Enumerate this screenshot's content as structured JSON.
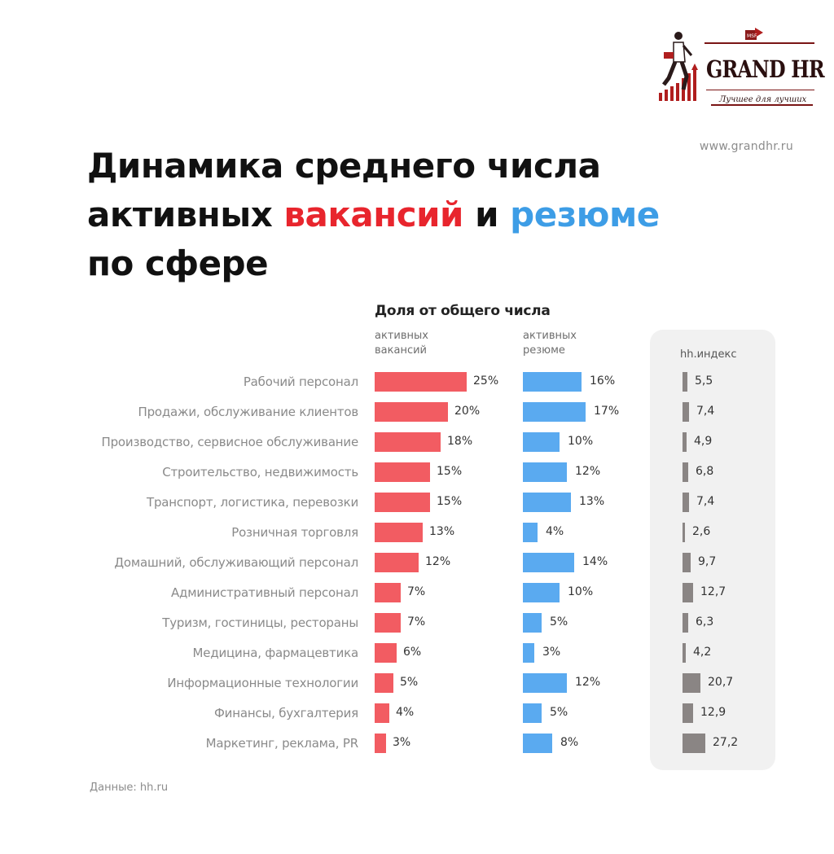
{
  "logo": {
    "brand": "GRAND HR",
    "tagline": "Лучшее для лучших",
    "stamp": "MSF"
  },
  "site": "www.grandhr.ru",
  "title": {
    "part1": "Динамика среднего числа активных ",
    "vacancies_word": "вакансий",
    "and_word": " и ",
    "resumes_word": "резюме",
    "part2": " по сфере"
  },
  "colors": {
    "vacancies": "#f25c62",
    "resumes": "#5aaaf0",
    "hh_index": "#8a8584",
    "title_red": "#e8252d",
    "title_blue": "#3d9de6"
  },
  "chart_data": {
    "type": "bar",
    "title": "Доля от общего числа",
    "columns": {
      "vacancies": "активных вакансий",
      "resumes": "активных резюме",
      "hh_index": "hh.индекс"
    },
    "categories": [
      "Рабочий персонал",
      "Продажи, обслуживание клиентов",
      "Производство, сервисное обслуживание",
      "Строительство, недвижимость",
      "Транспорт, логистика, перевозки",
      "Розничная торговля",
      "Домашний, обслуживающий персонал",
      "Административный персонал",
      "Туризм, гостиницы, рестораны",
      "Медицина, фармацевтика",
      "Информационные технологии",
      "Финансы, бухгалтерия",
      "Маркетинг, реклама, PR"
    ],
    "series": [
      {
        "name": "активных вакансий",
        "values": [
          25,
          20,
          18,
          15,
          15,
          13,
          12,
          7,
          7,
          6,
          5,
          4,
          3
        ],
        "unit": "%"
      },
      {
        "name": "активных резюме",
        "values": [
          16,
          17,
          10,
          12,
          13,
          4,
          14,
          10,
          5,
          3,
          12,
          5,
          8
        ],
        "unit": "%"
      },
      {
        "name": "hh.индекс",
        "values": [
          "5,5",
          "7,4",
          "4,9",
          "6,8",
          "7,4",
          "2,6",
          "9,7",
          "12,7",
          "6,3",
          "4,2",
          "20,7",
          "12,9",
          "27,2"
        ]
      }
    ]
  },
  "source": "Данные: hh.ru"
}
